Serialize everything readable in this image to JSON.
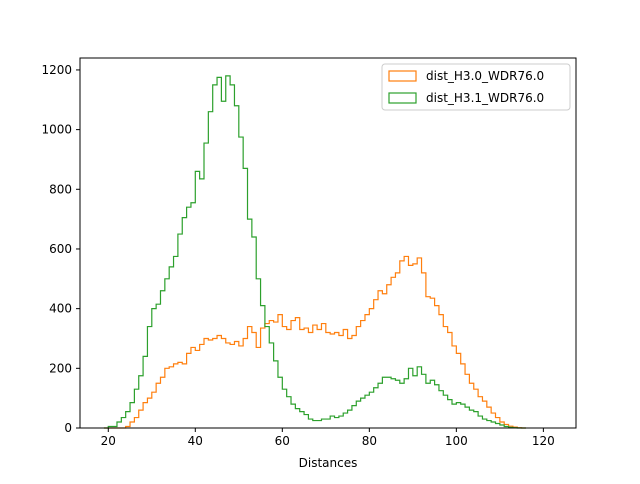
{
  "chart_data": {
    "type": "histogram",
    "xlabel": "Distances",
    "ylabel": "",
    "title": "",
    "xlim": [
      13.5,
      127.5
    ],
    "ylim": [
      0,
      1240
    ],
    "x_ticks": [
      20,
      40,
      60,
      80,
      100,
      120
    ],
    "y_ticks": [
      0,
      200,
      400,
      600,
      800,
      1000,
      1200
    ],
    "legend_position": "top-right",
    "bin_start": 19,
    "bin_width": 1,
    "series": [
      {
        "name": "dist_H3.0_WDR76.0",
        "color": "#ff7f0e",
        "values": [
          0,
          0,
          0,
          0,
          0,
          5,
          20,
          35,
          60,
          85,
          100,
          120,
          150,
          170,
          200,
          205,
          215,
          220,
          215,
          250,
          270,
          260,
          280,
          300,
          295,
          300,
          310,
          300,
          285,
          280,
          290,
          275,
          300,
          340,
          320,
          270,
          335,
          350,
          360,
          355,
          380,
          340,
          330,
          360,
          370,
          330,
          335,
          320,
          345,
          330,
          350,
          320,
          315,
          320,
          310,
          330,
          300,
          310,
          340,
          360,
          380,
          400,
          430,
          460,
          450,
          480,
          505,
          520,
          560,
          575,
          545,
          550,
          570,
          520,
          440,
          435,
          410,
          380,
          340,
          320,
          275,
          250,
          215,
          180,
          150,
          130,
          105,
          90,
          70,
          50,
          35,
          20,
          12,
          6,
          3,
          1,
          0
        ]
      },
      {
        "name": "dist_H3.1_WDR76.0",
        "color": "#2ca02c",
        "values": [
          0,
          5,
          5,
          20,
          35,
          55,
          85,
          130,
          175,
          240,
          340,
          400,
          415,
          460,
          500,
          540,
          575,
          650,
          705,
          740,
          755,
          860,
          835,
          955,
          1060,
          1150,
          1175,
          1095,
          1180,
          1150,
          1080,
          975,
          870,
          700,
          640,
          500,
          410,
          340,
          285,
          225,
          170,
          130,
          105,
          80,
          65,
          55,
          45,
          30,
          25,
          25,
          30,
          30,
          40,
          35,
          40,
          50,
          60,
          75,
          90,
          100,
          110,
          120,
          135,
          150,
          170,
          170,
          165,
          160,
          150,
          165,
          200,
          175,
          205,
          180,
          150,
          160,
          145,
          125,
          110,
          95,
          80,
          85,
          80,
          70,
          60,
          55,
          40,
          30,
          25,
          20,
          15,
          10,
          5,
          2,
          1,
          0,
          0
        ]
      }
    ]
  }
}
